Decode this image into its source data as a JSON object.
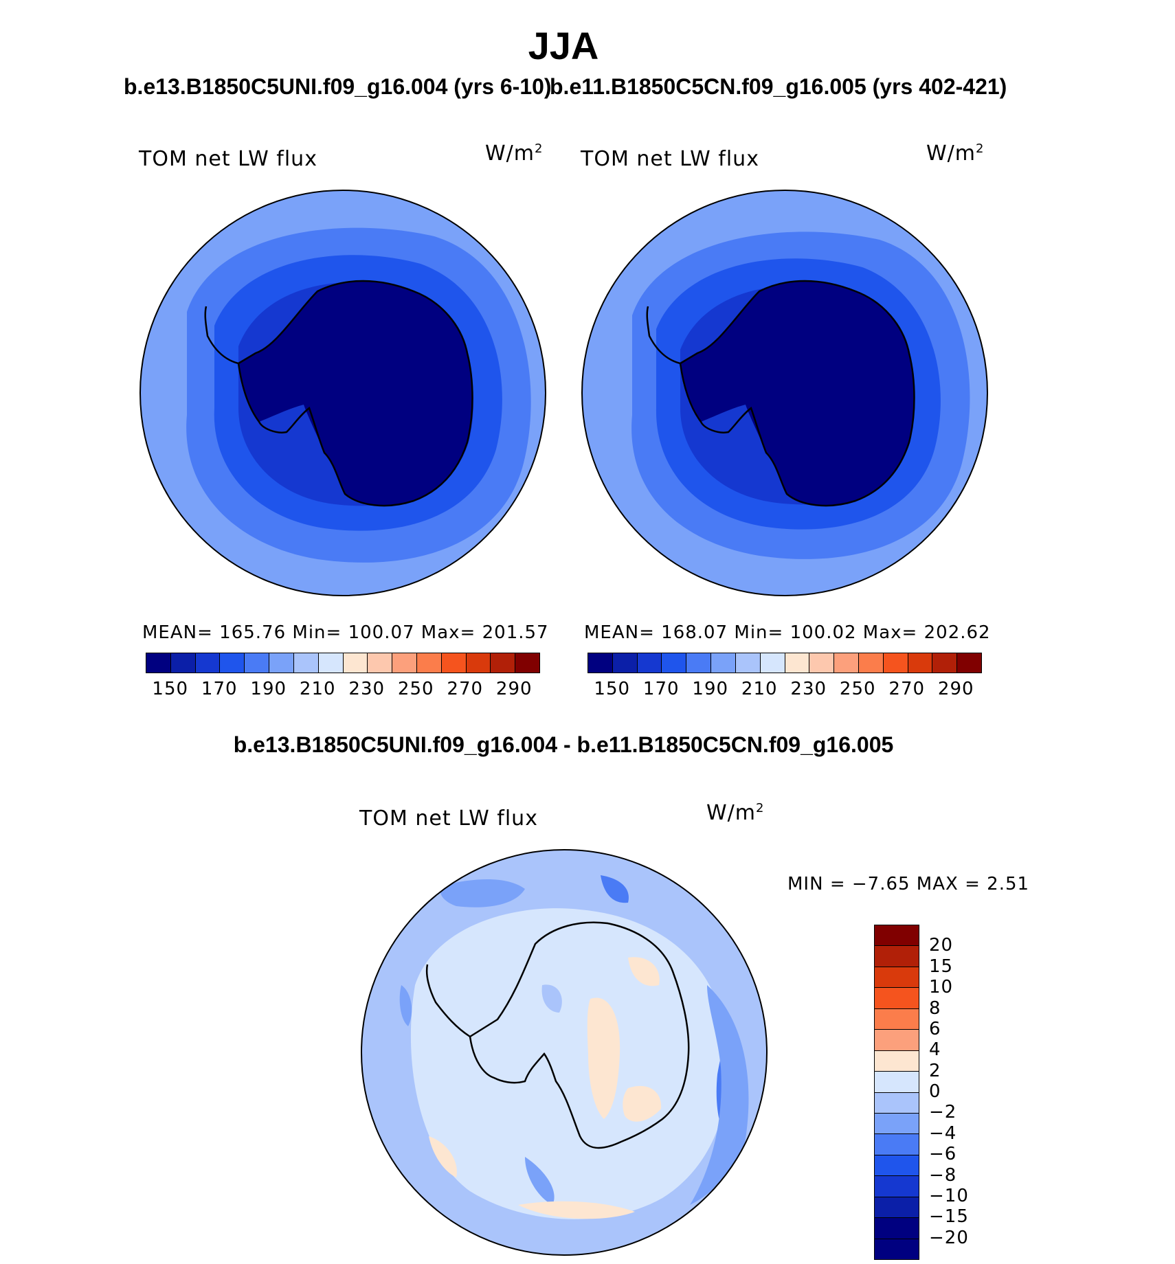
{
  "title": "JJA",
  "panels": [
    {
      "subtitle": "b.e13.B1850C5UNI.f09_g16.004 (yrs 6-10)",
      "field_label": "TOM net LW flux",
      "units": "W/m",
      "units_exp": "2",
      "stats": "MEAN= 165.76   Min= 100.07   Max= 201.57"
    },
    {
      "subtitle": "b.e11.B1850C5CN.f09_g16.005 (yrs 402-421)",
      "field_label": "TOM net LW flux",
      "units": "W/m",
      "units_exp": "2",
      "stats": "MEAN= 168.07   Min= 100.02   Max= 202.62"
    }
  ],
  "diff_panel": {
    "title": "b.e13.B1850C5UNI.f09_g16.004 - b.e11.B1850C5CN.f09_g16.005",
    "field_label": "TOM net LW flux",
    "units": "W/m",
    "units_exp": "2",
    "stats": "MIN =   −7.65 MAX =     2.51"
  },
  "colorbar_main": {
    "colors": [
      "#000080",
      "#0b1fa8",
      "#1538d0",
      "#1f55ec",
      "#4a7bf5",
      "#7aa2f9",
      "#aac4fb",
      "#d6e6fd",
      "#fde6d1",
      "#fdc8ae",
      "#fca07c",
      "#fb7d4b",
      "#f5541e",
      "#d93a0c",
      "#b12008",
      "#800000"
    ],
    "labels": [
      "150",
      "170",
      "190",
      "210",
      "230",
      "250",
      "270",
      "290"
    ]
  },
  "colorbar_diff": {
    "colors": [
      "#800000",
      "#b12008",
      "#d93a0c",
      "#f5541e",
      "#fb7d4b",
      "#fca07c",
      "#fde6d1",
      "#d6e6fd",
      "#aac4fb",
      "#7aa2f9",
      "#4a7bf5",
      "#1f55ec",
      "#1538d0",
      "#0b1fa8",
      "#000080"
    ],
    "labels": [
      "20",
      "15",
      "10",
      "8",
      "6",
      "4",
      "2",
      "0",
      "−2",
      "−4",
      "−6",
      "−8",
      "−10",
      "−15",
      "−20"
    ]
  },
  "map_colors": {
    "ring1": "#7aa2f9",
    "ring2": "#4a7bf5",
    "ring3": "#1f55ec",
    "ring4": "#1538d0",
    "ring5": "#000080",
    "diff_bg": "#d6e6fd",
    "diff_mid": "#aac4fb",
    "diff_dark": "#7aa2f9",
    "diff_deep": "#4a7bf5",
    "diff_pos": "#fde6d1"
  }
}
